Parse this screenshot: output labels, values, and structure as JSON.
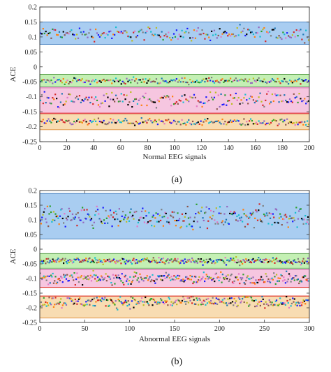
{
  "chart_data": [
    {
      "type": "scatter",
      "caption": "(a)",
      "xlabel": "Normal EEG signals",
      "ylabel": "ACE",
      "xlim": [
        0,
        200
      ],
      "ylim": [
        -0.25,
        0.2
      ],
      "xticks": [
        0,
        20,
        40,
        60,
        80,
        100,
        120,
        140,
        160,
        180,
        200
      ],
      "yticks": [
        0.2,
        0.15,
        0.1,
        0.05,
        0,
        -0.05,
        -0.1,
        -0.15,
        -0.2,
        -0.25
      ],
      "grid": false,
      "bands": [
        {
          "name": "blue",
          "color": "#a9cdf1",
          "edge": "#2f6fb5",
          "range": [
            0.075,
            0.15
          ]
        },
        {
          "name": "green",
          "color": "#c4f0b4",
          "edge": "#3a8a2a",
          "range": [
            -0.065,
            -0.025
          ]
        },
        {
          "name": "pink",
          "color": "#f6c6e0",
          "edge": "#c23a8a",
          "range": [
            -0.155,
            -0.07
          ]
        },
        {
          "name": "orange",
          "color": "#f8dcb2",
          "edge": "#d9822b",
          "range": [
            -0.21,
            -0.16
          ]
        }
      ],
      "red_lines": [
        -0.155
      ],
      "clusters": [
        {
          "band": "blue",
          "n": 200,
          "mean": 0.11,
          "spread": 0.014
        },
        {
          "band": "green",
          "n": 200,
          "mean": -0.047,
          "spread": 0.006
        },
        {
          "band": "pink",
          "n": 200,
          "mean": -0.11,
          "spread": 0.016
        },
        {
          "band": "orange",
          "n": 200,
          "mean": -0.185,
          "spread": 0.007
        }
      ]
    },
    {
      "type": "scatter",
      "caption": "(b)",
      "xlabel": "Abnormal EEG signals",
      "ylabel": "ACE",
      "xlim": [
        0,
        300
      ],
      "ylim": [
        -0.25,
        0.2
      ],
      "xticks": [
        0,
        50,
        100,
        150,
        200,
        250,
        300
      ],
      "yticks": [
        0.2,
        0.15,
        0.1,
        0.05,
        0,
        -0.05,
        -0.1,
        -0.15,
        -0.2,
        -0.25
      ],
      "grid": false,
      "bands": [
        {
          "name": "blue",
          "color": "#a9cdf1",
          "edge": "#2f6fb5",
          "range": [
            0.035,
            0.19
          ]
        },
        {
          "name": "green",
          "color": "#c4f0b4",
          "edge": "#3a8a2a",
          "range": [
            -0.065,
            -0.015
          ]
        },
        {
          "name": "pink",
          "color": "#f6c6e0",
          "edge": "#c23a8a",
          "range": [
            -0.13,
            -0.07
          ]
        },
        {
          "name": "orange",
          "color": "#f8dcb2",
          "edge": "#d9822b",
          "range": [
            -0.235,
            -0.16
          ]
        }
      ],
      "red_lines": [
        -0.13,
        -0.16
      ],
      "clusters": [
        {
          "band": "blue",
          "n": 300,
          "mean": 0.11,
          "spread": 0.022
        },
        {
          "band": "green",
          "n": 300,
          "mean": -0.04,
          "spread": 0.007
        },
        {
          "band": "pink",
          "n": 300,
          "mean": -0.1,
          "spread": 0.012
        },
        {
          "band": "orange",
          "n": 300,
          "mean": -0.18,
          "spread": 0.012
        }
      ]
    }
  ],
  "marker_colors": [
    "#1f77b4",
    "#d62728",
    "#2ca02c",
    "#9467bd",
    "#ff7f0e",
    "#17becf",
    "#8c564b",
    "#e377c2",
    "#7f7f7f",
    "#bcbd22",
    "#000000",
    "#1a1aff"
  ]
}
